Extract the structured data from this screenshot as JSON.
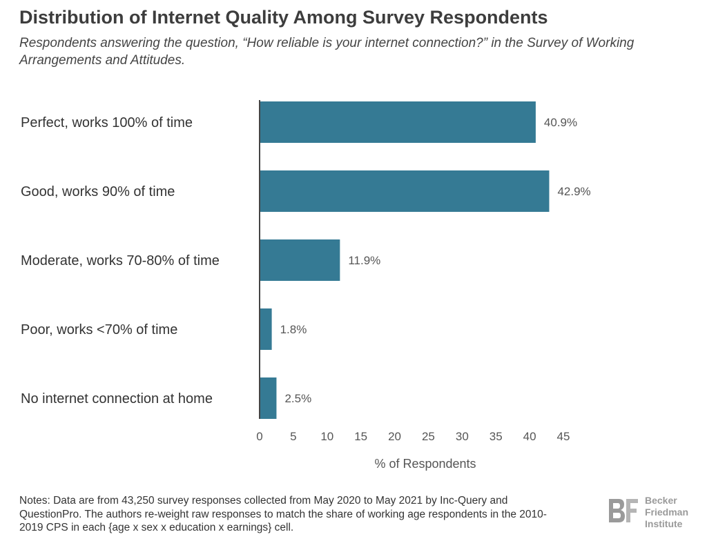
{
  "title": "Distribution of Internet Quality Among Survey Respondents",
  "subtitle": "Respondents answering the question, “How reliable is your internet connection?” in the Survey of Working Arrangements and Attitudes.",
  "chart_data": {
    "type": "bar",
    "orientation": "horizontal",
    "categories": [
      "Perfect, works 100% of time",
      "Good, works 90% of time",
      "Moderate, works 70-80% of time",
      "Poor, works <70% of time",
      "No internet connection at home"
    ],
    "values": [
      40.9,
      42.9,
      11.9,
      1.8,
      2.5
    ],
    "value_labels": [
      "40.9%",
      "42.9%",
      "11.9%",
      "1.8%",
      "2.5%"
    ],
    "xticks": [
      0,
      5,
      10,
      15,
      20,
      25,
      30,
      35,
      40,
      45
    ],
    "xlim": [
      0,
      45
    ],
    "xlabel": "% of Respondents",
    "ylabel": "",
    "grid": false,
    "bar_color": "#357a94"
  },
  "notes": "Notes: Data are from 43,250 survey responses collected from May 2020 to May 2021 by Inc-Query and QuestionPro. The authors re-weight raw responses to match the share of working age respondents in the 2010-2019 CPS in each {age x sex x education x earnings} cell.",
  "logo": {
    "line1": "Becker",
    "line2": "Friedman",
    "line3": "Institute",
    "color": "#9a9a9a"
  }
}
